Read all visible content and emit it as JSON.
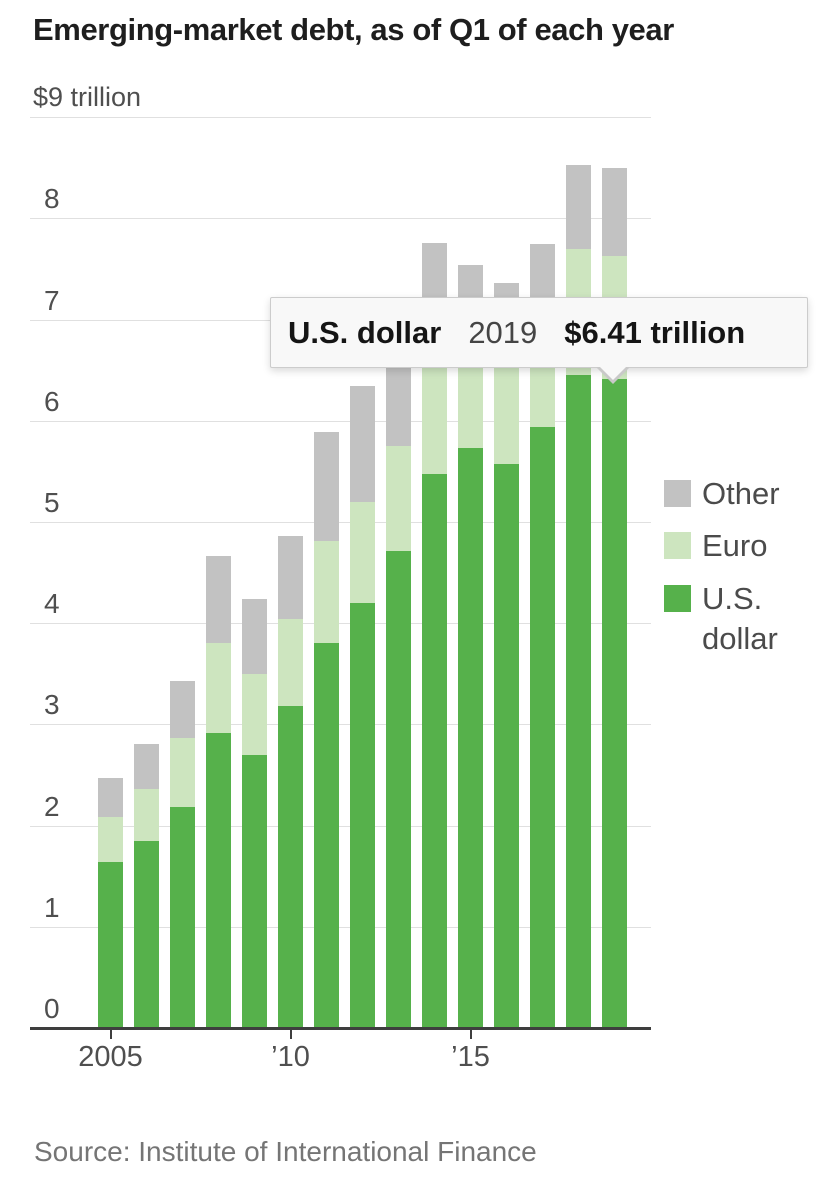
{
  "header": {
    "title": "Emerging-market debt, as of Q1 of each year"
  },
  "y_axis": {
    "top_label": "$9 trillion",
    "tick_labels": [
      "8",
      "7",
      "6",
      "5",
      "4",
      "3",
      "2",
      "1",
      "0"
    ],
    "tick_values": [
      8,
      7,
      6,
      5,
      4,
      3,
      2,
      1,
      0
    ]
  },
  "x_axis": {
    "tick_labels": [
      {
        "year": 2005,
        "label": "2005"
      },
      {
        "year": 2010,
        "label": "’10"
      },
      {
        "year": 2015,
        "label": "’15"
      }
    ]
  },
  "legend": {
    "items": [
      {
        "label": "Other",
        "color": "#c2c2c2"
      },
      {
        "label": "Euro",
        "color": "#cde5bf"
      },
      {
        "label": "U.S. dollar",
        "color": "#56b14b"
      }
    ]
  },
  "tooltip": {
    "series": "U.S. dollar",
    "year": "2019",
    "value": "$6.41 trillion"
  },
  "footer": {
    "source": "Source: Institute of International Finance"
  },
  "colors": {
    "usd_green": "#56b14b",
    "euro_light_green": "#cde5bf",
    "other_gray": "#c2c2c2",
    "gridline": "#e0e0e0",
    "axis": "#3e3e3e",
    "text_dark": "#1e1e1e",
    "text_axis": "#4f4f4f",
    "tooltip_bg": "#f8f8f8",
    "tooltip_border": "#cccccc"
  },
  "chart_data": {
    "type": "bar",
    "stacked": true,
    "title": "Emerging-market debt, as of Q1 of each year",
    "unit": "trillions of U.S. dollars",
    "categories": [
      2005,
      2006,
      2007,
      2008,
      2009,
      2010,
      2011,
      2012,
      2013,
      2014,
      2015,
      2016,
      2017,
      2018,
      2019
    ],
    "series": [
      {
        "name": "U.S. dollar",
        "color": "#56b14b",
        "values": [
          1.64,
          1.85,
          2.18,
          2.91,
          2.7,
          3.18,
          3.8,
          4.2,
          4.71,
          5.47,
          5.73,
          5.57,
          5.94,
          6.45,
          6.41
        ]
      },
      {
        "name": "Euro",
        "color": "#cde5bf",
        "values": [
          0.45,
          0.51,
          0.68,
          0.89,
          0.8,
          0.86,
          1.01,
          1.0,
          1.04,
          1.23,
          1.07,
          1.18,
          1.06,
          1.25,
          1.22
        ]
      },
      {
        "name": "Other",
        "color": "#c2c2c2",
        "values": [
          0.38,
          0.45,
          0.57,
          0.86,
          0.74,
          0.82,
          1.08,
          1.14,
          1.3,
          1.06,
          0.74,
          0.61,
          0.75,
          0.83,
          0.87
        ]
      }
    ],
    "totals": [
      2.47,
      2.81,
      3.43,
      4.66,
      4.24,
      4.86,
      5.89,
      6.34,
      7.05,
      7.76,
      7.54,
      7.36,
      7.75,
      8.53,
      8.5
    ],
    "ylim": [
      0,
      9
    ],
    "grid": "horizontal",
    "legend_position": "right",
    "highlighted_point": {
      "series": "U.S. dollar",
      "category": 2019,
      "value": 6.41
    }
  }
}
